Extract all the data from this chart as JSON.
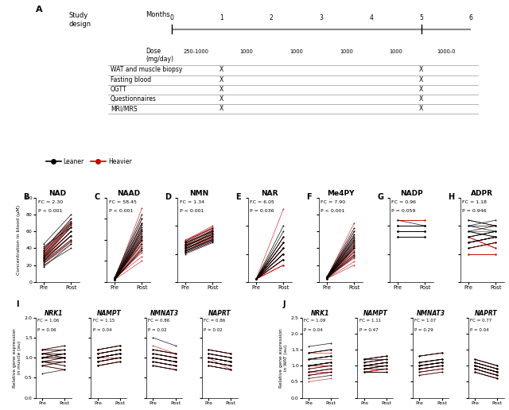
{
  "panel_A": {
    "months": [
      0,
      1,
      2,
      3,
      4,
      5,
      6
    ],
    "doses": [
      "250-1000",
      "1000",
      "1000",
      "1000",
      "1000",
      "1000-0"
    ],
    "rows": [
      "WAT and muscle biopsy",
      "Fasting blood",
      "OGTT",
      "Questionnaires",
      "MRI/MRS"
    ]
  },
  "legend": {
    "leaner_color": "#000000",
    "heavier_color": "#cc0000",
    "leaner_label": "Leaner",
    "heavier_label": "Heavier"
  },
  "panels_B_H": [
    {
      "label": "B",
      "title": "NAD",
      "fc": "FC = 2.30",
      "pval": "P < 0.001",
      "ylim": [
        0,
        100
      ],
      "yticks": [
        0,
        20,
        40,
        60,
        80,
        100
      ],
      "ylabel": "Concentration in blood (μM)",
      "leaner_pre": [
        20,
        22,
        25,
        28,
        30,
        32,
        35,
        38,
        40,
        42,
        45,
        18,
        24,
        26,
        29
      ],
      "leaner_post": [
        40,
        48,
        55,
        60,
        65,
        68,
        70,
        75,
        72,
        65,
        80,
        45,
        50,
        55,
        60
      ],
      "heavier_pre": [
        25,
        28,
        30,
        32,
        35,
        38,
        22,
        26,
        29,
        31,
        34,
        36,
        27,
        33,
        37,
        23
      ],
      "heavier_post": [
        50,
        55,
        60,
        65,
        70,
        75,
        45,
        55,
        60,
        65,
        68,
        72,
        55,
        65,
        70,
        48
      ]
    },
    {
      "label": "C",
      "title": "NAAD",
      "fc": "FC = 58.45",
      "pval": "P < 0.001",
      "ylim": [
        0,
        0.4
      ],
      "yticks": [
        0.0,
        0.1,
        0.2,
        0.3,
        0.4
      ],
      "ylabel": "Concentration in blood (μM)",
      "leaner_pre": [
        0.01,
        0.01,
        0.01,
        0.02,
        0.01,
        0.01,
        0.02,
        0.01,
        0.01,
        0.01,
        0.02,
        0.01,
        0.01,
        0.02,
        0.01
      ],
      "leaner_post": [
        0.15,
        0.2,
        0.25,
        0.3,
        0.28,
        0.22,
        0.18,
        0.24,
        0.26,
        0.2,
        0.32,
        0.16,
        0.21,
        0.27,
        0.23
      ],
      "heavier_pre": [
        0.01,
        0.01,
        0.02,
        0.01,
        0.01,
        0.01,
        0.02,
        0.01,
        0.01,
        0.01,
        0.02,
        0.01,
        0.01,
        0.01,
        0.02,
        0.01
      ],
      "heavier_post": [
        0.1,
        0.15,
        0.2,
        0.25,
        0.3,
        0.35,
        0.12,
        0.18,
        0.22,
        0.28,
        0.14,
        0.19,
        0.24,
        0.16,
        0.21,
        0.17
      ]
    },
    {
      "label": "D",
      "title": "NMN",
      "fc": "FC = 1.34",
      "pval": "P < 0.001",
      "ylim": [
        0.0,
        1.5
      ],
      "yticks": [
        0.0,
        0.5,
        1.0,
        1.5
      ],
      "ylabel": "Concentration in blood (μM)",
      "leaner_pre": [
        0.5,
        0.55,
        0.6,
        0.65,
        0.7,
        0.58,
        0.52,
        0.62,
        0.68,
        0.56,
        0.64,
        0.72,
        0.54,
        0.66,
        0.6
      ],
      "leaner_post": [
        0.7,
        0.75,
        0.8,
        0.85,
        0.9,
        0.8,
        0.72,
        0.88,
        0.92,
        0.76,
        0.84,
        0.96,
        0.74,
        0.9,
        0.82
      ],
      "heavier_pre": [
        0.6,
        0.65,
        0.7,
        0.75,
        0.55,
        0.58,
        0.62,
        0.68,
        0.72,
        0.66,
        0.6,
        0.64,
        0.56,
        0.7,
        0.74,
        0.52
      ],
      "heavier_post": [
        0.75,
        0.8,
        0.9,
        0.95,
        0.78,
        0.82,
        0.86,
        0.92,
        0.98,
        0.84,
        0.78,
        0.88,
        0.76,
        0.94,
        1.0,
        0.72
      ]
    },
    {
      "label": "E",
      "title": "NAR",
      "fc": "FC = 6.05",
      "pval": "P = 0.036",
      "ylim": [
        0.0,
        0.015
      ],
      "yticks": [
        0.0,
        0.005,
        0.01,
        0.015
      ],
      "ylabel": "Concentration in blood (μM)",
      "leaner_pre": [
        0.0005,
        0.0005,
        0.0005,
        0.0005,
        0.0005,
        0.0005,
        0.0005,
        0.0005,
        0.0005,
        0.0005,
        0.0005,
        0.0005,
        0.0005,
        0.0005,
        0.0005
      ],
      "leaner_post": [
        0.004,
        0.005,
        0.006,
        0.007,
        0.008,
        0.009,
        0.01,
        0.005,
        0.006,
        0.007,
        0.008,
        0.004,
        0.005,
        0.006,
        0.007
      ],
      "heavier_pre": [
        0.0005,
        0.0005,
        0.0005,
        0.0005,
        0.0005,
        0.0005,
        0.0005,
        0.0005,
        0.0005,
        0.0005,
        0.0005,
        0.0005,
        0.0005,
        0.0005,
        0.0005,
        0.0005
      ],
      "heavier_post": [
        0.003,
        0.004,
        0.005,
        0.006,
        0.007,
        0.008,
        0.003,
        0.004,
        0.005,
        0.006,
        0.007,
        0.003,
        0.004,
        0.005,
        0.006,
        0.013
      ]
    },
    {
      "label": "F",
      "title": "Me4PY",
      "fc": "FC = 7.90",
      "pval": "P < 0.001",
      "ylim": [
        0,
        5
      ],
      "yticks": [
        0,
        1,
        2,
        3,
        4,
        5
      ],
      "ylabel": "Concentration in blood (μM)",
      "leaner_pre": [
        0.2,
        0.3,
        0.25,
        0.2,
        0.3,
        0.25,
        0.2,
        0.3,
        0.25,
        0.2,
        0.3,
        0.25,
        0.2,
        0.3,
        0.25
      ],
      "leaner_post": [
        1.5,
        2.0,
        2.5,
        3.0,
        2.8,
        2.2,
        1.8,
        2.4,
        2.6,
        2.0,
        3.2,
        1.6,
        2.1,
        2.7,
        2.3
      ],
      "heavier_pre": [
        0.2,
        0.3,
        0.25,
        0.2,
        0.3,
        0.25,
        0.2,
        0.3,
        0.25,
        0.2,
        0.3,
        0.25,
        0.2,
        0.3,
        0.25,
        0.2
      ],
      "heavier_post": [
        1.0,
        1.5,
        2.0,
        2.5,
        3.0,
        3.5,
        1.2,
        1.8,
        2.2,
        2.8,
        1.4,
        1.9,
        2.4,
        1.6,
        2.1,
        1.7
      ]
    },
    {
      "label": "G",
      "title": "NADP",
      "fc": "FC = 0.96",
      "pval": "P = 0.059",
      "ylim": [
        0,
        15
      ],
      "yticks": [
        0,
        5,
        10,
        15
      ],
      "ylabel": "Concentration in blood (μM)",
      "leaner_pre": [
        8,
        9,
        10,
        11,
        8,
        9,
        10,
        9,
        8,
        10,
        9,
        8,
        10,
        9,
        8
      ],
      "leaner_post": [
        8,
        9,
        10,
        10,
        8,
        9,
        10,
        9,
        8,
        10,
        9,
        8,
        10,
        9,
        8
      ],
      "heavier_pre": [
        9,
        10,
        11,
        10,
        9,
        8,
        10,
        11,
        9,
        10,
        8,
        9,
        10,
        11,
        9,
        10
      ],
      "heavier_post": [
        9,
        10,
        11,
        10,
        9,
        8,
        10,
        11,
        9,
        10,
        8,
        9,
        10,
        11,
        9,
        10
      ]
    },
    {
      "label": "H",
      "title": "ADPR",
      "fc": "FC = 1.18",
      "pval": "P = 0.946",
      "ylim": [
        0,
        15
      ],
      "yticks": [
        0,
        5,
        10,
        15
      ],
      "ylabel": "Concentration in blood (μM)",
      "leaner_pre": [
        8,
        9,
        10,
        7,
        11,
        8,
        9,
        6,
        10,
        7,
        8,
        9,
        10,
        7,
        11
      ],
      "leaner_post": [
        9,
        8,
        10,
        8,
        10,
        9,
        8,
        7,
        11,
        8,
        9,
        10,
        9,
        8,
        10
      ],
      "heavier_pre": [
        5,
        6,
        7,
        8,
        9,
        5,
        6,
        7,
        8,
        5,
        6,
        7,
        8,
        5,
        6,
        7
      ],
      "heavier_post": [
        5,
        7,
        8,
        6,
        9,
        5,
        7,
        8,
        6,
        5,
        7,
        8,
        6,
        5,
        7,
        8
      ]
    }
  ],
  "panels_I": {
    "label": "I",
    "subtitle": "Relative gene expression\nin muscle (au)",
    "genes": [
      "NRK1",
      "NAMPT",
      "NMNAT3",
      "NAPRT"
    ],
    "fc_vals": [
      "FC = 1.06",
      "FC = 1.15",
      "FC = 0.86",
      "FC = 0.86"
    ],
    "p_vals": [
      "P = 0.06",
      "P = 0.04",
      "P = 0.02",
      "P = 0.02"
    ],
    "ylim": [
      0.0,
      2.0
    ],
    "yticks": [
      0.0,
      0.5,
      1.0,
      1.5,
      2.0
    ],
    "leaner_pre": [
      [
        1.0,
        1.1,
        0.9,
        1.2,
        0.8,
        1.0,
        1.1,
        0.9,
        1.0,
        1.2,
        0.8,
        1.0,
        1.1,
        0.9,
        0.6
      ],
      [
        1.0,
        1.1,
        0.9,
        1.2,
        0.8,
        1.0,
        1.1,
        0.9,
        1.0,
        1.2,
        0.8,
        1.0,
        1.1,
        0.9,
        1.0
      ],
      [
        1.0,
        1.1,
        0.9,
        1.2,
        0.8,
        1.0,
        1.1,
        0.9,
        1.0,
        1.2,
        0.8,
        1.0,
        1.1,
        0.9,
        1.5
      ],
      [
        1.0,
        1.1,
        0.9,
        1.2,
        0.8,
        1.0,
        1.1,
        0.9,
        1.0,
        1.2,
        0.8,
        1.0,
        1.1,
        0.9,
        1.0
      ]
    ],
    "leaner_post": [
      [
        1.0,
        1.1,
        0.9,
        1.2,
        0.9,
        1.0,
        1.2,
        0.8,
        1.1,
        1.3,
        0.7,
        1.1,
        1.0,
        1.0,
        0.7
      ],
      [
        1.1,
        1.2,
        1.0,
        1.3,
        0.9,
        1.1,
        1.2,
        1.0,
        1.1,
        1.3,
        0.9,
        1.1,
        1.2,
        1.0,
        1.1
      ],
      [
        0.9,
        1.0,
        0.8,
        1.1,
        0.7,
        0.9,
        1.0,
        0.8,
        0.9,
        1.1,
        0.7,
        0.9,
        1.0,
        0.8,
        1.3
      ],
      [
        0.9,
        1.0,
        0.8,
        1.1,
        0.7,
        0.9,
        1.0,
        0.8,
        0.9,
        1.1,
        0.7,
        0.9,
        1.0,
        0.8,
        0.9
      ]
    ],
    "heavier_pre": [
      [
        1.0,
        1.1,
        0.9,
        1.2,
        0.8,
        1.0,
        1.1,
        0.9,
        1.0,
        1.2,
        0.8,
        1.0,
        1.1,
        0.9,
        1.0,
        1.0
      ],
      [
        1.0,
        1.1,
        0.9,
        1.2,
        0.8,
        1.0,
        1.1,
        0.9,
        1.0,
        1.2,
        0.8,
        1.0,
        1.1,
        0.9,
        1.0,
        1.0
      ],
      [
        1.0,
        1.1,
        0.9,
        1.2,
        0.8,
        1.0,
        1.1,
        0.9,
        1.0,
        1.2,
        0.8,
        1.0,
        1.1,
        0.9,
        1.0,
        1.3
      ],
      [
        1.0,
        1.1,
        0.9,
        1.2,
        0.8,
        1.0,
        1.1,
        0.9,
        1.0,
        1.2,
        0.8,
        1.0,
        1.1,
        0.9,
        1.0,
        1.0
      ]
    ],
    "heavier_post": [
      [
        1.0,
        1.1,
        0.9,
        1.2,
        0.9,
        1.0,
        1.2,
        0.8,
        1.1,
        1.3,
        0.7,
        1.1,
        1.0,
        1.0,
        1.1,
        1.0
      ],
      [
        1.1,
        1.2,
        1.0,
        1.3,
        0.9,
        1.1,
        1.2,
        1.0,
        1.1,
        1.3,
        0.9,
        1.1,
        1.2,
        1.0,
        1.1,
        1.0
      ],
      [
        0.9,
        1.0,
        0.8,
        1.1,
        0.7,
        0.9,
        1.0,
        0.8,
        0.9,
        1.1,
        0.7,
        0.9,
        1.0,
        0.8,
        0.9,
        1.1
      ],
      [
        0.9,
        1.0,
        0.8,
        1.1,
        0.7,
        0.9,
        1.0,
        0.8,
        0.9,
        1.1,
        0.7,
        0.9,
        1.0,
        0.8,
        0.9,
        0.7
      ]
    ]
  },
  "panels_J": {
    "label": "J",
    "subtitle": "Relative gene expression\nin WAT (au)",
    "genes": [
      "NRK1",
      "NAMPT",
      "NMNAT3",
      "NAPRT"
    ],
    "fc_vals": [
      "FC = 1.09",
      "FC = 1.11",
      "FC = 1.07",
      "FC = 0.77"
    ],
    "p_vals": [
      "P = 0.04",
      "P = 0.47",
      "P = 0.29",
      "P = 0.04"
    ],
    "ylim": [
      0.0,
      2.5
    ],
    "yticks": [
      0.0,
      0.5,
      1.0,
      1.5,
      2.0,
      2.5
    ],
    "leaner_pre": [
      [
        1.0,
        1.2,
        0.8,
        1.4,
        0.6,
        1.0,
        1.2,
        0.8,
        1.0,
        1.4,
        0.7,
        1.0,
        1.2,
        0.9,
        1.6
      ],
      [
        0.8,
        1.0,
        1.2,
        0.9,
        1.1,
        0.8,
        1.0,
        1.2,
        0.9,
        1.1,
        0.8,
        1.0,
        1.2,
        0.9,
        1.0
      ],
      [
        1.0,
        1.1,
        0.9,
        1.3,
        0.7,
        1.0,
        1.1,
        0.9,
        1.0,
        1.3,
        0.8,
        1.0,
        1.1,
        0.9,
        1.0
      ],
      [
        1.0,
        1.1,
        0.9,
        1.2,
        0.8,
        1.0,
        1.1,
        0.9,
        1.0,
        1.2,
        0.8,
        1.0,
        1.1,
        0.9,
        1.0
      ]
    ],
    "leaner_post": [
      [
        1.1,
        1.3,
        0.9,
        1.5,
        0.7,
        1.1,
        1.3,
        0.9,
        1.1,
        1.5,
        0.8,
        1.1,
        1.3,
        1.0,
        1.7
      ],
      [
        0.8,
        1.0,
        1.2,
        0.9,
        1.2,
        0.8,
        1.1,
        1.3,
        1.0,
        1.2,
        0.8,
        1.1,
        1.3,
        1.0,
        1.1
      ],
      [
        1.1,
        1.2,
        1.0,
        1.4,
        0.8,
        1.1,
        1.2,
        1.0,
        1.1,
        1.4,
        0.9,
        1.1,
        1.2,
        1.0,
        1.1
      ],
      [
        0.8,
        0.9,
        0.7,
        1.0,
        0.6,
        0.8,
        0.9,
        0.7,
        0.8,
        1.0,
        0.6,
        0.8,
        0.9,
        0.7,
        0.8
      ]
    ],
    "heavier_pre": [
      [
        1.0,
        1.2,
        0.8,
        1.4,
        0.7,
        1.0,
        1.2,
        0.8,
        1.0,
        1.4,
        0.7,
        1.0,
        1.2,
        0.9,
        1.0,
        0.5
      ],
      [
        0.8,
        1.0,
        1.2,
        0.9,
        1.1,
        0.8,
        1.0,
        1.2,
        0.9,
        1.1,
        0.8,
        1.0,
        1.2,
        0.9,
        1.0,
        0.8
      ],
      [
        1.0,
        1.1,
        0.9,
        1.3,
        0.7,
        1.0,
        1.1,
        0.9,
        1.0,
        1.3,
        0.8,
        1.0,
        1.1,
        0.9,
        1.0,
        0.8
      ],
      [
        1.0,
        1.1,
        0.9,
        1.2,
        0.8,
        1.0,
        1.1,
        0.9,
        1.0,
        1.2,
        0.8,
        1.0,
        1.1,
        0.9,
        1.0,
        0.9
      ]
    ],
    "heavier_post": [
      [
        1.0,
        1.2,
        0.8,
        1.4,
        0.8,
        1.0,
        1.3,
        0.9,
        1.1,
        1.5,
        0.8,
        1.1,
        1.3,
        1.0,
        1.1,
        0.6
      ],
      [
        0.9,
        1.1,
        1.3,
        1.0,
        1.2,
        0.9,
        1.1,
        1.3,
        1.0,
        1.2,
        0.9,
        1.1,
        1.3,
        1.0,
        1.1,
        0.9
      ],
      [
        1.1,
        1.2,
        1.0,
        1.4,
        0.8,
        1.1,
        1.2,
        1.0,
        1.1,
        1.4,
        0.9,
        1.1,
        1.2,
        1.0,
        1.1,
        0.9
      ],
      [
        0.8,
        0.9,
        0.7,
        1.0,
        0.6,
        0.8,
        0.9,
        0.7,
        0.8,
        1.0,
        0.6,
        0.8,
        0.9,
        0.7,
        0.8,
        0.7
      ]
    ]
  }
}
